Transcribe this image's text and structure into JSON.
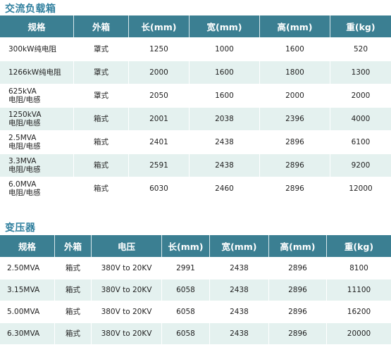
{
  "section1": {
    "title": "交流负载箱",
    "headers": [
      "规格",
      "外箱",
      "长(mm)",
      "宽(mm)",
      "高(mm)",
      "重(kg)"
    ],
    "rows": [
      {
        "spec1": "300kW纯电阻",
        "spec2": "",
        "box": "罩式",
        "length": "1250",
        "width": "1000",
        "height": "1600",
        "weight": "520"
      },
      {
        "spec1": "1266kW纯电阻",
        "spec2": "",
        "box": "罩式",
        "length": "2000",
        "width": "1600",
        "height": "1800",
        "weight": "1300"
      },
      {
        "spec1": "625kVA",
        "spec2": "电阻/电感",
        "box": "罩式",
        "length": "2050",
        "width": "1600",
        "height": "2000",
        "weight": "2000"
      },
      {
        "spec1": "1250kVA",
        "spec2": "电阻/电感",
        "box": "箱式",
        "length": "2001",
        "width": "2038",
        "height": "2396",
        "weight": "4000"
      },
      {
        "spec1": "2.5MVA",
        "spec2": "电阻/电感",
        "box": "箱式",
        "length": "2401",
        "width": "2438",
        "height": "2896",
        "weight": "6100"
      },
      {
        "spec1": "3.3MVA",
        "spec2": "电阻/电感",
        "box": "箱式",
        "length": "2591",
        "width": "2438",
        "height": "2896",
        "weight": "9200"
      },
      {
        "spec1": "6.0MVA",
        "spec2": "电阻/电感",
        "box": "箱式",
        "length": "6030",
        "width": "2460",
        "height": "2896",
        "weight": "12000"
      }
    ]
  },
  "section2": {
    "title": "变压器",
    "headers": [
      "规格",
      "外箱",
      "电压",
      "长(mm)",
      "宽(mm)",
      "高(mm)",
      "重(kg)"
    ],
    "rows": [
      {
        "spec": "2.50MVA",
        "box": "箱式",
        "voltage": "380V to 20KV",
        "length": "2991",
        "width": "2438",
        "height": "2896",
        "weight": "8100"
      },
      {
        "spec": "3.15MVA",
        "box": "箱式",
        "voltage": "380V to 20KV",
        "length": "6058",
        "width": "2438",
        "height": "2896",
        "weight": "11100"
      },
      {
        "spec": "5.00MVA",
        "box": "箱式",
        "voltage": "380V to 20KV",
        "length": "6058",
        "width": "2438",
        "height": "2896",
        "weight": "16200"
      },
      {
        "spec": "6.30MVA",
        "box": "箱式",
        "voltage": "380V to 20KV",
        "length": "6058",
        "width": "2438",
        "height": "2896",
        "weight": "20000"
      }
    ]
  }
}
